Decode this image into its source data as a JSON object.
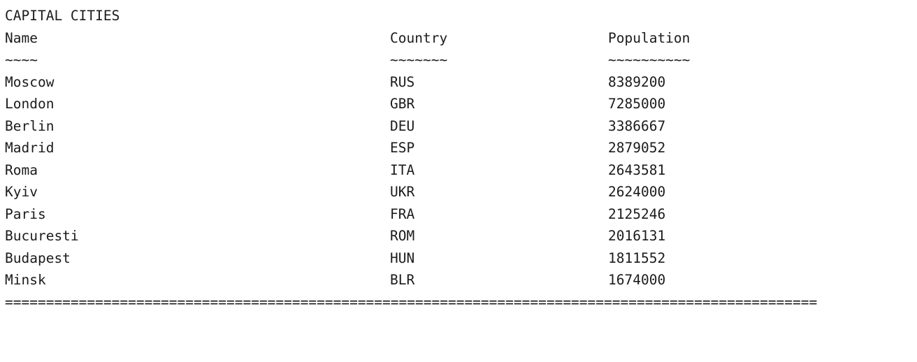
{
  "report": {
    "title": "CAPITAL CITIES",
    "headers": {
      "name": "Name",
      "country": "Country",
      "population": "Population"
    },
    "underlines": {
      "name": "~~~~",
      "country": "~~~~~~~",
      "population": "~~~~~~~~~~"
    },
    "rows": [
      {
        "name": "Moscow",
        "country": "RUS",
        "population": "8389200"
      },
      {
        "name": "London",
        "country": "GBR",
        "population": "7285000"
      },
      {
        "name": "Berlin",
        "country": "DEU",
        "population": "3386667"
      },
      {
        "name": "Madrid",
        "country": "ESP",
        "population": "2879052"
      },
      {
        "name": "Roma",
        "country": "ITA",
        "population": "2643581"
      },
      {
        "name": "Kyiv",
        "country": "UKR",
        "population": "2624000"
      },
      {
        "name": "Paris",
        "country": "FRA",
        "population": "2125246"
      },
      {
        "name": "Bucuresti",
        "country": "ROM",
        "population": "2016131"
      },
      {
        "name": "Budapest",
        "country": "HUN",
        "population": "1811552"
      },
      {
        "name": "Minsk",
        "country": "BLR",
        "population": "1674000"
      }
    ],
    "footer_rule": "==================================================================================================="
  }
}
